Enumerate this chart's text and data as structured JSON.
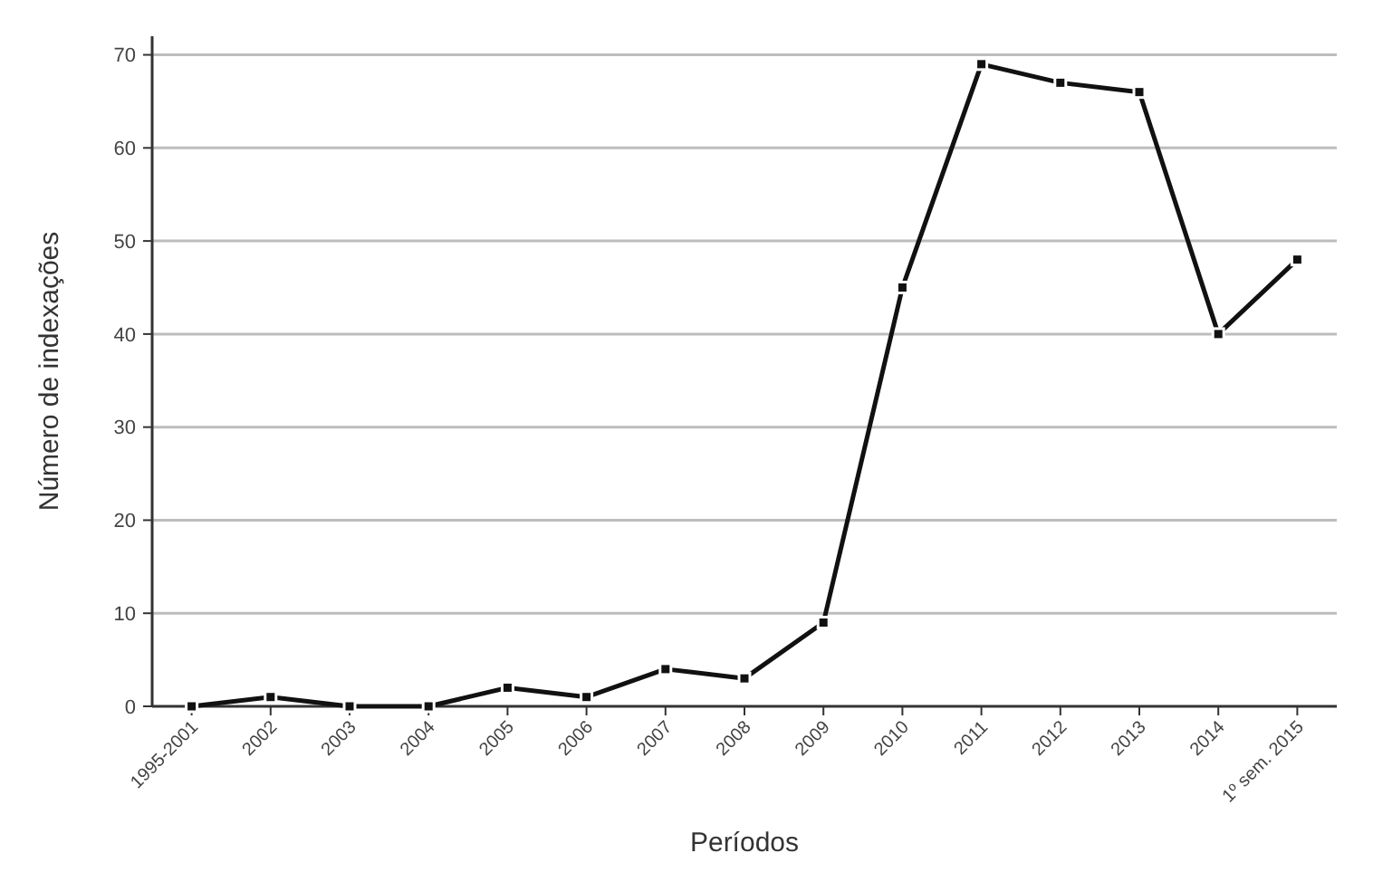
{
  "chart_data": {
    "type": "line",
    "xlabel": "Períodos",
    "ylabel": "Número de indexações",
    "categories": [
      "1995-2001",
      "2002",
      "2003",
      "2004",
      "2005",
      "2006",
      "2007",
      "2008",
      "2009",
      "2010",
      "2011",
      "2012",
      "2013",
      "2014",
      "1º sem. 2015"
    ],
    "series": [
      {
        "color": "#111111",
        "values": [
          0,
          1,
          0,
          0,
          2,
          1,
          4,
          3,
          9,
          45,
          69,
          67,
          66,
          40,
          48
        ]
      }
    ],
    "ylim": [
      0,
      72
    ],
    "yticks": [
      0,
      10,
      20,
      30,
      40,
      50,
      60,
      70
    ],
    "grid": "y",
    "marker": "square",
    "line_style": "solid"
  }
}
